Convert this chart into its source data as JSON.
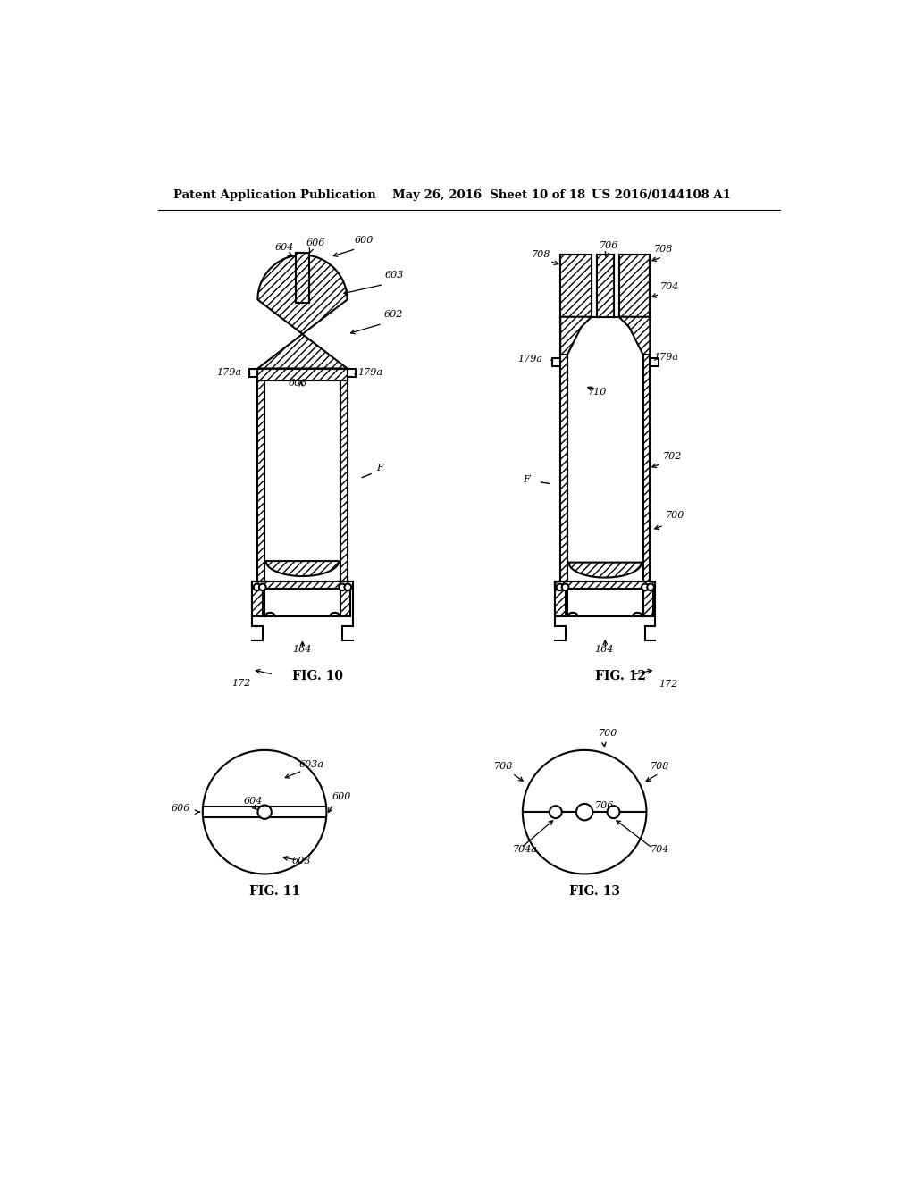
{
  "header_left": "Patent Application Publication",
  "header_mid": "May 26, 2016  Sheet 10 of 18",
  "header_right": "US 2016/0144108 A1",
  "fig10_label": "FIG. 10",
  "fig11_label": "FIG. 11",
  "fig12_label": "FIG. 12",
  "fig13_label": "FIG. 13",
  "line_color": "#000000",
  "bg_color": "#ffffff"
}
